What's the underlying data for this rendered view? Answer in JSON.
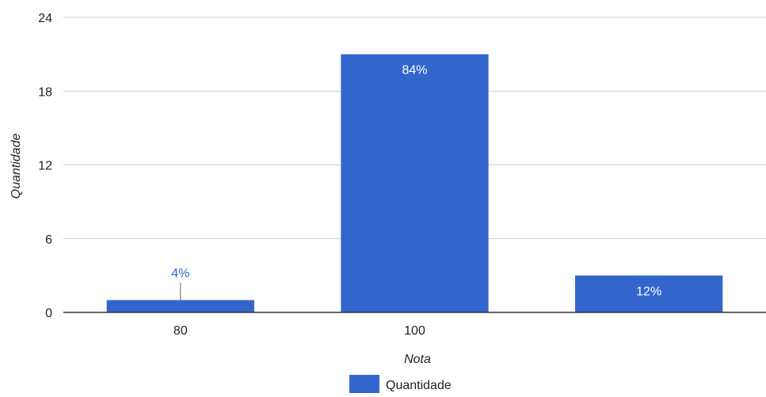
{
  "chart_data": {
    "type": "bar",
    "categories": [
      "80",
      "100",
      ""
    ],
    "series": [
      {
        "name": "Quantidade",
        "color": "#3366cc",
        "values": [
          1,
          21,
          3
        ],
        "data_labels": [
          "4%",
          "84%",
          "12%"
        ]
      }
    ],
    "xlabel": "Nota",
    "ylabel": "Quantidade",
    "ylim": [
      0,
      24
    ],
    "yticks": [
      "0",
      "6",
      "12",
      "18",
      "24"
    ],
    "grid": true,
    "legend_position": "bottom"
  }
}
